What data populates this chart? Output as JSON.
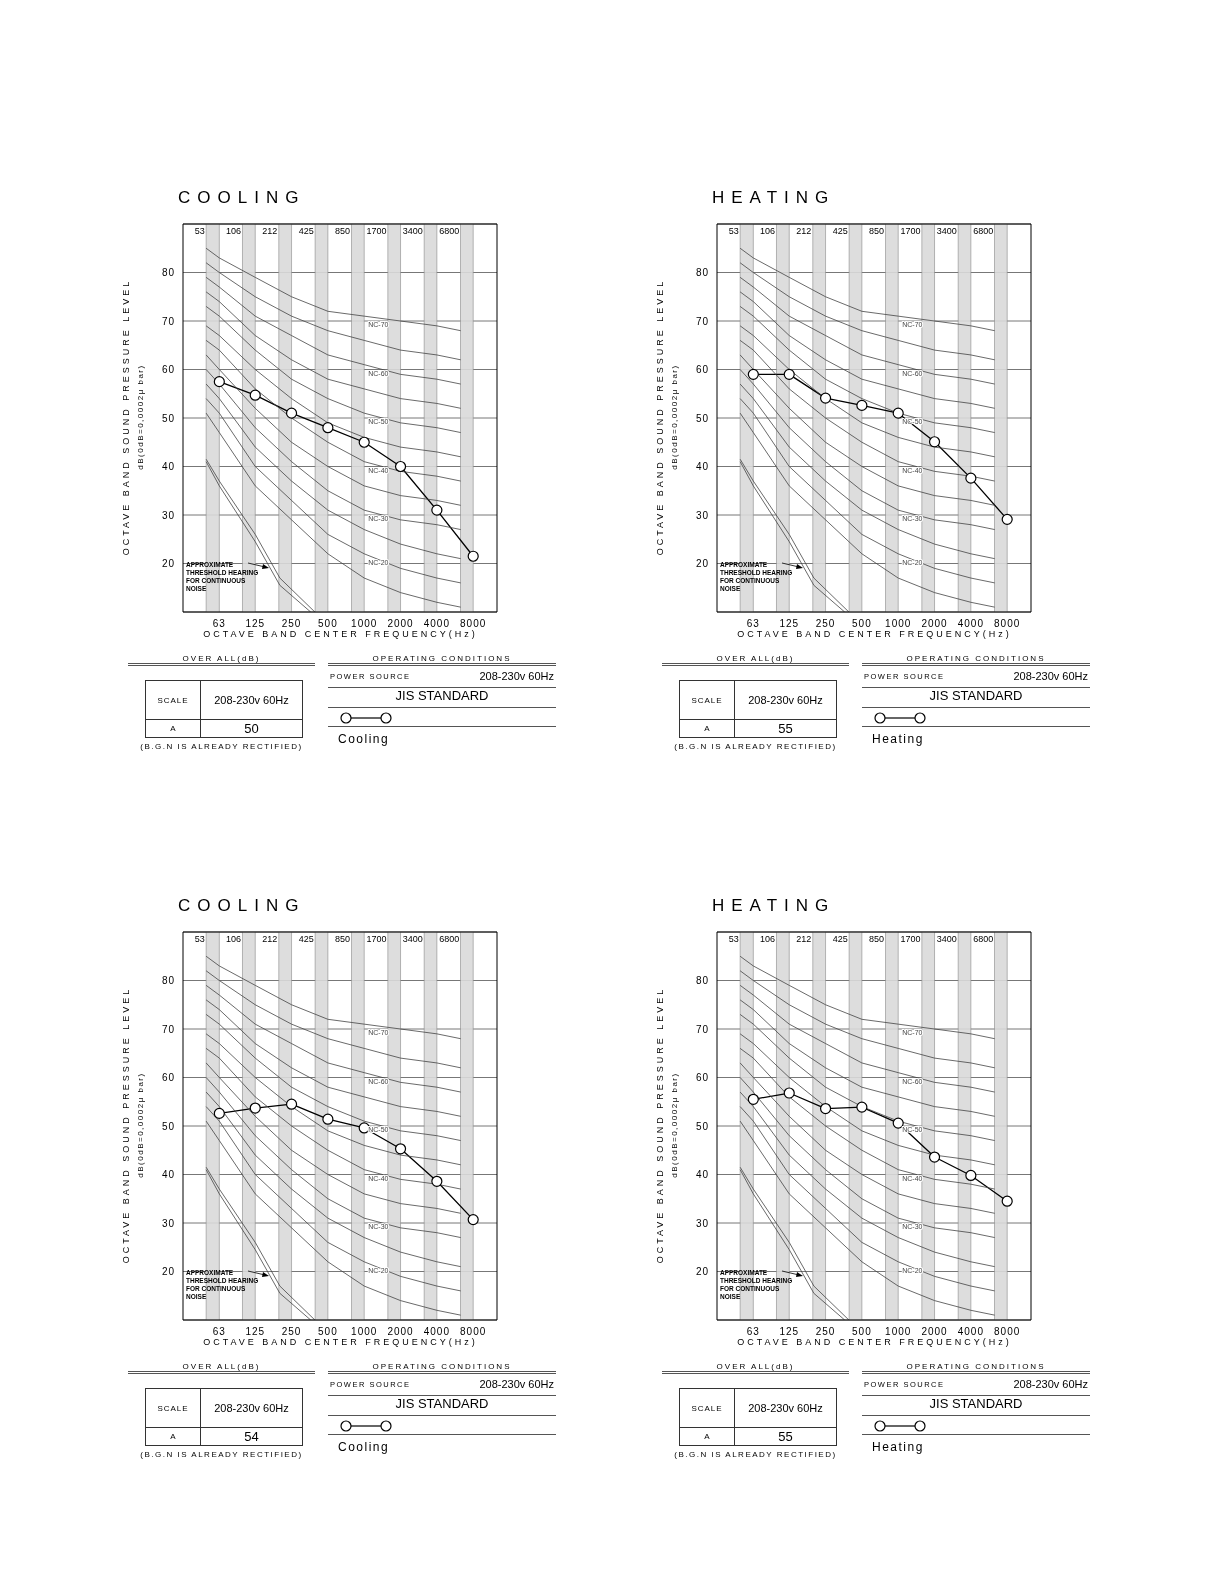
{
  "chart_data": [
    {
      "type": "line",
      "title": "COOLING",
      "xlabel": "OCTAVE BAND CENTER FREQUENCY(Hz)",
      "ylabel": "OCTAVE BAND SOUND PRESSURE LEVEL\ndB(0dB=0,0002μ bar)",
      "log": "x",
      "xlim": [
        31.5,
        12600
      ],
      "xticks": [
        63,
        125,
        250,
        500,
        1000,
        2000,
        4000,
        8000
      ],
      "ylim": [
        10,
        90
      ],
      "yticks": [
        20,
        30,
        40,
        50,
        60,
        70,
        80
      ],
      "grid": "y",
      "legend": "bottom",
      "marker": "circle",
      "x": [
        63,
        125,
        250,
        500,
        1000,
        2000,
        4000,
        8000
      ],
      "bands": [
        {
          "axis": "x",
          "from": 49,
          "to": 63,
          "color": "#d9d9d9"
        },
        {
          "axis": "x",
          "from": 98,
          "to": 125,
          "color": "#d9d9d9"
        },
        {
          "axis": "x",
          "from": 196,
          "to": 250,
          "color": "#d9d9d9"
        },
        {
          "axis": "x",
          "from": 392,
          "to": 500,
          "color": "#d9d9d9"
        },
        {
          "axis": "x",
          "from": 785,
          "to": 1000,
          "color": "#d9d9d9"
        },
        {
          "axis": "x",
          "from": 1570,
          "to": 2000,
          "color": "#d9d9d9"
        },
        {
          "axis": "x",
          "from": 3140,
          "to": 4000,
          "color": "#d9d9d9"
        },
        {
          "axis": "x",
          "from": 6280,
          "to": 8000,
          "color": "#d9d9d9"
        }
      ],
      "annotations": [
        "OVER ALL(dB)",
        "SCALE",
        "208-230v 60Hz",
        "A",
        "50",
        "(B.G.N IS ALREADY RECTIFIED)",
        "OPERATING CONDITIONS",
        "POWER SOURCE",
        "208-230v 60Hz",
        "JIS STANDARD",
        "APPROXIMATE\nTHRESHOLD HEARING\nFOR CONTINUOUS\nNOISE",
        "53",
        "106",
        "212",
        "425",
        "850",
        "1700",
        "3400",
        "6800"
      ],
      "series": [
        {
          "name": "Cooling",
          "color": "#000000",
          "values": [
            57.5,
            54.7,
            51,
            48,
            45,
            40,
            31,
            21.5
          ]
        },
        {
          "name": "NC-70",
          "color": "#444444",
          "marker": "none",
          "x": [
            49,
            63,
            125,
            250,
            500,
            1000,
            2000,
            4000,
            6300
          ],
          "values": [
            85,
            83,
            79,
            75,
            72,
            71,
            70,
            69,
            68
          ]
        },
        {
          "color": "#444444",
          "marker": "none",
          "x": [
            49,
            63,
            125,
            250,
            500,
            1000,
            2000,
            4000,
            6300
          ],
          "values": [
            82,
            80,
            75,
            71,
            68,
            66,
            64,
            63,
            62
          ]
        },
        {
          "name": "NC-60",
          "color": "#444444",
          "marker": "none",
          "x": [
            49,
            63,
            125,
            250,
            500,
            1000,
            2000,
            4000,
            6300
          ],
          "values": [
            79,
            77,
            71,
            67,
            63,
            61,
            59,
            58,
            57
          ]
        },
        {
          "color": "#444444",
          "marker": "none",
          "x": [
            49,
            63,
            125,
            250,
            500,
            1000,
            2000,
            4000,
            6300
          ],
          "values": [
            76,
            74,
            67,
            62,
            58,
            56,
            54,
            53,
            52
          ]
        },
        {
          "name": "NC-50",
          "color": "#444444",
          "marker": "none",
          "x": [
            49,
            63,
            125,
            250,
            500,
            1000,
            2000,
            4000,
            6300
          ],
          "values": [
            73,
            71,
            64,
            58,
            54,
            51,
            49,
            48,
            47
          ]
        },
        {
          "color": "#444444",
          "marker": "none",
          "x": [
            49,
            63,
            125,
            250,
            500,
            1000,
            2000,
            4000,
            6300
          ],
          "values": [
            69,
            67,
            60,
            54,
            49,
            46,
            44,
            43,
            42
          ]
        },
        {
          "name": "NC-40",
          "color": "#444444",
          "marker": "none",
          "x": [
            49,
            63,
            125,
            250,
            500,
            1000,
            2000,
            4000,
            6300
          ],
          "values": [
            66,
            64,
            56,
            50,
            45,
            41,
            39,
            38,
            37
          ]
        },
        {
          "color": "#444444",
          "marker": "none",
          "x": [
            49,
            63,
            125,
            250,
            500,
            1000,
            2000,
            4000,
            6300
          ],
          "values": [
            63,
            60,
            52,
            45,
            40,
            36,
            34,
            33,
            32
          ]
        },
        {
          "name": "NC-30",
          "color": "#444444",
          "marker": "none",
          "x": [
            49,
            63,
            125,
            250,
            500,
            1000,
            2000,
            4000,
            6300
          ],
          "values": [
            60,
            57,
            48,
            41,
            35,
            31,
            29,
            28,
            27
          ]
        },
        {
          "color": "#444444",
          "marker": "none",
          "x": [
            49,
            63,
            125,
            250,
            500,
            1000,
            2000,
            4000,
            6300
          ],
          "values": [
            57,
            54,
            44,
            37,
            31,
            27,
            24,
            22,
            21
          ]
        },
        {
          "name": "NC-20",
          "color": "#444444",
          "marker": "none",
          "x": [
            49,
            63,
            125,
            250,
            500,
            1000,
            2000,
            4000,
            6300
          ],
          "values": [
            54,
            51,
            40,
            33,
            26,
            22,
            19,
            17,
            16
          ]
        },
        {
          "color": "#444444",
          "marker": "none",
          "x": [
            49,
            63,
            125,
            250,
            500,
            1000,
            2000,
            4000,
            6300
          ],
          "values": [
            51,
            47,
            36,
            29,
            22,
            17,
            14,
            12,
            11
          ]
        },
        {
          "color": "#444444",
          "marker": "none",
          "x": [
            49,
            63,
            125,
            200,
            390
          ],
          "values": [
            41.5,
            37,
            26,
            17,
            10
          ]
        },
        {
          "color": "#444444",
          "marker": "none",
          "x": [
            49,
            63,
            125,
            200,
            360
          ],
          "values": [
            41,
            36,
            24.5,
            15.5,
            10
          ]
        }
      ]
    },
    {
      "type": "line",
      "title": "HEATING",
      "xlabel": "OCTAVE BAND CENTER FREQUENCY(Hz)",
      "ylabel": "OCTAVE BAND SOUND PRESSURE LEVEL\ndB(0dB=0,0002μ bar)",
      "log": "x",
      "xlim": [
        31.5,
        12600
      ],
      "xticks": [
        63,
        125,
        250,
        500,
        1000,
        2000,
        4000,
        8000
      ],
      "ylim": [
        10,
        90
      ],
      "yticks": [
        20,
        30,
        40,
        50,
        60,
        70,
        80
      ],
      "grid": "y",
      "legend": "bottom",
      "marker": "circle",
      "x": [
        63,
        125,
        250,
        500,
        1000,
        2000,
        4000,
        8000
      ],
      "bands": [
        {
          "axis": "x",
          "from": 49,
          "to": 63,
          "color": "#d9d9d9"
        },
        {
          "axis": "x",
          "from": 98,
          "to": 125,
          "color": "#d9d9d9"
        },
        {
          "axis": "x",
          "from": 196,
          "to": 250,
          "color": "#d9d9d9"
        },
        {
          "axis": "x",
          "from": 392,
          "to": 500,
          "color": "#d9d9d9"
        },
        {
          "axis": "x",
          "from": 785,
          "to": 1000,
          "color": "#d9d9d9"
        },
        {
          "axis": "x",
          "from": 1570,
          "to": 2000,
          "color": "#d9d9d9"
        },
        {
          "axis": "x",
          "from": 3140,
          "to": 4000,
          "color": "#d9d9d9"
        },
        {
          "axis": "x",
          "from": 6280,
          "to": 8000,
          "color": "#d9d9d9"
        }
      ],
      "annotations": [
        "OVER ALL(dB)",
        "SCALE",
        "208-230v 60Hz",
        "A",
        "55",
        "(B.G.N IS ALREADY RECTIFIED)",
        "OPERATING CONDITIONS",
        "POWER SOURCE",
        "208-230v 60Hz",
        "JIS STANDARD",
        "APPROXIMATE\nTHRESHOLD HEARING\nFOR CONTINUOUS\nNOISE",
        "53",
        "106",
        "212",
        "425",
        "850",
        "1700",
        "3400",
        "6800"
      ],
      "series": [
        {
          "name": "Heating",
          "color": "#000000",
          "values": [
            59,
            59,
            54.1,
            52.6,
            51,
            45.1,
            37.6,
            29.1
          ]
        },
        {
          "name": "NC-70",
          "color": "#444444",
          "marker": "none",
          "x": [
            49,
            63,
            125,
            250,
            500,
            1000,
            2000,
            4000,
            6300
          ],
          "values": [
            85,
            83,
            79,
            75,
            72,
            71,
            70,
            69,
            68
          ]
        },
        {
          "color": "#444444",
          "marker": "none",
          "x": [
            49,
            63,
            125,
            250,
            500,
            1000,
            2000,
            4000,
            6300
          ],
          "values": [
            82,
            80,
            75,
            71,
            68,
            66,
            64,
            63,
            62
          ]
        },
        {
          "name": "NC-60",
          "color": "#444444",
          "marker": "none",
          "x": [
            49,
            63,
            125,
            250,
            500,
            1000,
            2000,
            4000,
            6300
          ],
          "values": [
            79,
            77,
            71,
            67,
            63,
            61,
            59,
            58,
            57
          ]
        },
        {
          "color": "#444444",
          "marker": "none",
          "x": [
            49,
            63,
            125,
            250,
            500,
            1000,
            2000,
            4000,
            6300
          ],
          "values": [
            76,
            74,
            67,
            62,
            58,
            56,
            54,
            53,
            52
          ]
        },
        {
          "name": "NC-50",
          "color": "#444444",
          "marker": "none",
          "x": [
            49,
            63,
            125,
            250,
            500,
            1000,
            2000,
            4000,
            6300
          ],
          "values": [
            73,
            71,
            64,
            58,
            54,
            51,
            49,
            48,
            47
          ]
        },
        {
          "color": "#444444",
          "marker": "none",
          "x": [
            49,
            63,
            125,
            250,
            500,
            1000,
            2000,
            4000,
            6300
          ],
          "values": [
            69,
            67,
            60,
            54,
            49,
            46,
            44,
            43,
            42
          ]
        },
        {
          "name": "NC-40",
          "color": "#444444",
          "marker": "none",
          "x": [
            49,
            63,
            125,
            250,
            500,
            1000,
            2000,
            4000,
            6300
          ],
          "values": [
            66,
            64,
            56,
            50,
            45,
            41,
            39,
            38,
            37
          ]
        },
        {
          "color": "#444444",
          "marker": "none",
          "x": [
            49,
            63,
            125,
            250,
            500,
            1000,
            2000,
            4000,
            6300
          ],
          "values": [
            63,
            60,
            52,
            45,
            40,
            36,
            34,
            33,
            32
          ]
        },
        {
          "name": "NC-30",
          "color": "#444444",
          "marker": "none",
          "x": [
            49,
            63,
            125,
            250,
            500,
            1000,
            2000,
            4000,
            6300
          ],
          "values": [
            60,
            57,
            48,
            41,
            35,
            31,
            29,
            28,
            27
          ]
        },
        {
          "color": "#444444",
          "marker": "none",
          "x": [
            49,
            63,
            125,
            250,
            500,
            1000,
            2000,
            4000,
            6300
          ],
          "values": [
            57,
            54,
            44,
            37,
            31,
            27,
            24,
            22,
            21
          ]
        },
        {
          "name": "NC-20",
          "color": "#444444",
          "marker": "none",
          "x": [
            49,
            63,
            125,
            250,
            500,
            1000,
            2000,
            4000,
            6300
          ],
          "values": [
            54,
            51,
            40,
            33,
            26,
            22,
            19,
            17,
            16
          ]
        },
        {
          "color": "#444444",
          "marker": "none",
          "x": [
            49,
            63,
            125,
            250,
            500,
            1000,
            2000,
            4000,
            6300
          ],
          "values": [
            51,
            47,
            36,
            29,
            22,
            17,
            14,
            12,
            11
          ]
        },
        {
          "color": "#444444",
          "marker": "none",
          "x": [
            49,
            63,
            125,
            200,
            390
          ],
          "values": [
            41.5,
            37,
            26,
            17,
            10
          ]
        },
        {
          "color": "#444444",
          "marker": "none",
          "x": [
            49,
            63,
            125,
            200,
            360
          ],
          "values": [
            41,
            36,
            24.5,
            15.5,
            10
          ]
        }
      ]
    },
    {
      "type": "line",
      "title": "COOLING",
      "xlabel": "OCTAVE BAND CENTER FREQUENCY(Hz)",
      "ylabel": "OCTAVE BAND SOUND PRESSURE LEVEL\ndB(0dB=0,0002μ bar)",
      "log": "x",
      "xlim": [
        31.5,
        12600
      ],
      "xticks": [
        63,
        125,
        250,
        500,
        1000,
        2000,
        4000,
        8000
      ],
      "ylim": [
        10,
        90
      ],
      "yticks": [
        20,
        30,
        40,
        50,
        60,
        70,
        80
      ],
      "grid": "y",
      "legend": "bottom",
      "marker": "circle",
      "x": [
        63,
        125,
        250,
        500,
        1000,
        2000,
        4000,
        8000
      ],
      "bands": [
        {
          "axis": "x",
          "from": 49,
          "to": 63,
          "color": "#d9d9d9"
        },
        {
          "axis": "x",
          "from": 98,
          "to": 125,
          "color": "#d9d9d9"
        },
        {
          "axis": "x",
          "from": 196,
          "to": 250,
          "color": "#d9d9d9"
        },
        {
          "axis": "x",
          "from": 392,
          "to": 500,
          "color": "#d9d9d9"
        },
        {
          "axis": "x",
          "from": 785,
          "to": 1000,
          "color": "#d9d9d9"
        },
        {
          "axis": "x",
          "from": 1570,
          "to": 2000,
          "color": "#d9d9d9"
        },
        {
          "axis": "x",
          "from": 3140,
          "to": 4000,
          "color": "#d9d9d9"
        },
        {
          "axis": "x",
          "from": 6280,
          "to": 8000,
          "color": "#d9d9d9"
        }
      ],
      "annotations": [
        "OVER ALL(dB)",
        "SCALE",
        "208-230v 60Hz",
        "A",
        "54",
        "(B.G.N IS ALREADY RECTIFIED)",
        "OPERATING CONDITIONS",
        "POWER SOURCE",
        "208-230v 60Hz",
        "JIS STANDARD",
        "APPROXIMATE\nTHRESHOLD HEARING\nFOR CONTINUOUS\nNOISE",
        "53",
        "106",
        "212",
        "425",
        "850",
        "1700",
        "3400",
        "6800"
      ],
      "series": [
        {
          "name": "Cooling",
          "color": "#000000",
          "values": [
            52.6,
            53.7,
            54.5,
            51.4,
            49.6,
            45.3,
            38.6,
            30.7
          ]
        },
        {
          "name": "NC-70",
          "color": "#444444",
          "marker": "none",
          "x": [
            49,
            63,
            125,
            250,
            500,
            1000,
            2000,
            4000,
            6300
          ],
          "values": [
            85,
            83,
            79,
            75,
            72,
            71,
            70,
            69,
            68
          ]
        },
        {
          "color": "#444444",
          "marker": "none",
          "x": [
            49,
            63,
            125,
            250,
            500,
            1000,
            2000,
            4000,
            6300
          ],
          "values": [
            82,
            80,
            75,
            71,
            68,
            66,
            64,
            63,
            62
          ]
        },
        {
          "name": "NC-60",
          "color": "#444444",
          "marker": "none",
          "x": [
            49,
            63,
            125,
            250,
            500,
            1000,
            2000,
            4000,
            6300
          ],
          "values": [
            79,
            77,
            71,
            67,
            63,
            61,
            59,
            58,
            57
          ]
        },
        {
          "color": "#444444",
          "marker": "none",
          "x": [
            49,
            63,
            125,
            250,
            500,
            1000,
            2000,
            4000,
            6300
          ],
          "values": [
            76,
            74,
            67,
            62,
            58,
            56,
            54,
            53,
            52
          ]
        },
        {
          "name": "NC-50",
          "color": "#444444",
          "marker": "none",
          "x": [
            49,
            63,
            125,
            250,
            500,
            1000,
            2000,
            4000,
            6300
          ],
          "values": [
            73,
            71,
            64,
            58,
            54,
            51,
            49,
            48,
            47
          ]
        },
        {
          "color": "#444444",
          "marker": "none",
          "x": [
            49,
            63,
            125,
            250,
            500,
            1000,
            2000,
            4000,
            6300
          ],
          "values": [
            69,
            67,
            60,
            54,
            49,
            46,
            44,
            43,
            42
          ]
        },
        {
          "name": "NC-40",
          "color": "#444444",
          "marker": "none",
          "x": [
            49,
            63,
            125,
            250,
            500,
            1000,
            2000,
            4000,
            6300
          ],
          "values": [
            66,
            64,
            56,
            50,
            45,
            41,
            39,
            38,
            37
          ]
        },
        {
          "color": "#444444",
          "marker": "none",
          "x": [
            49,
            63,
            125,
            250,
            500,
            1000,
            2000,
            4000,
            6300
          ],
          "values": [
            63,
            60,
            52,
            45,
            40,
            36,
            34,
            33,
            32
          ]
        },
        {
          "name": "NC-30",
          "color": "#444444",
          "marker": "none",
          "x": [
            49,
            63,
            125,
            250,
            500,
            1000,
            2000,
            4000,
            6300
          ],
          "values": [
            60,
            57,
            48,
            41,
            35,
            31,
            29,
            28,
            27
          ]
        },
        {
          "color": "#444444",
          "marker": "none",
          "x": [
            49,
            63,
            125,
            250,
            500,
            1000,
            2000,
            4000,
            6300
          ],
          "values": [
            57,
            54,
            44,
            37,
            31,
            27,
            24,
            22,
            21
          ]
        },
        {
          "name": "NC-20",
          "color": "#444444",
          "marker": "none",
          "x": [
            49,
            63,
            125,
            250,
            500,
            1000,
            2000,
            4000,
            6300
          ],
          "values": [
            54,
            51,
            40,
            33,
            26,
            22,
            19,
            17,
            16
          ]
        },
        {
          "color": "#444444",
          "marker": "none",
          "x": [
            49,
            63,
            125,
            250,
            500,
            1000,
            2000,
            4000,
            6300
          ],
          "values": [
            51,
            47,
            36,
            29,
            22,
            17,
            14,
            12,
            11
          ]
        },
        {
          "color": "#444444",
          "marker": "none",
          "x": [
            49,
            63,
            125,
            200,
            390
          ],
          "values": [
            41.5,
            37,
            26,
            17,
            10
          ]
        },
        {
          "color": "#444444",
          "marker": "none",
          "x": [
            49,
            63,
            125,
            200,
            360
          ],
          "values": [
            41,
            36,
            24.5,
            15.5,
            10
          ]
        }
      ]
    },
    {
      "type": "line",
      "title": "HEATING",
      "xlabel": "OCTAVE BAND CENTER FREQUENCY(Hz)",
      "ylabel": "OCTAVE BAND SOUND PRESSURE LEVEL\ndB(0dB=0,0002μ bar)",
      "log": "x",
      "xlim": [
        31.5,
        12600
      ],
      "xticks": [
        63,
        125,
        250,
        500,
        1000,
        2000,
        4000,
        8000
      ],
      "ylim": [
        10,
        90
      ],
      "yticks": [
        20,
        30,
        40,
        50,
        60,
        70,
        80
      ],
      "grid": "y",
      "legend": "bottom",
      "marker": "circle",
      "x": [
        63,
        125,
        250,
        500,
        1000,
        2000,
        4000,
        8000
      ],
      "bands": [
        {
          "axis": "x",
          "from": 49,
          "to": 63,
          "color": "#d9d9d9"
        },
        {
          "axis": "x",
          "from": 98,
          "to": 125,
          "color": "#d9d9d9"
        },
        {
          "axis": "x",
          "from": 196,
          "to": 250,
          "color": "#d9d9d9"
        },
        {
          "axis": "x",
          "from": 392,
          "to": 500,
          "color": "#d9d9d9"
        },
        {
          "axis": "x",
          "from": 785,
          "to": 1000,
          "color": "#d9d9d9"
        },
        {
          "axis": "x",
          "from": 1570,
          "to": 2000,
          "color": "#d9d9d9"
        },
        {
          "axis": "x",
          "from": 3140,
          "to": 4000,
          "color": "#d9d9d9"
        },
        {
          "axis": "x",
          "from": 6280,
          "to": 8000,
          "color": "#d9d9d9"
        }
      ],
      "annotations": [
        "OVER ALL(dB)",
        "SCALE",
        "208-230v 60Hz",
        "A",
        "55",
        "(B.G.N IS ALREADY RECTIFIED)",
        "OPERATING CONDITIONS",
        "POWER SOURCE",
        "208-230v 60Hz",
        "JIS STANDARD",
        "APPROXIMATE\nTHRESHOLD HEARING\nFOR CONTINUOUS\nNOISE",
        "53",
        "106",
        "212",
        "425",
        "850",
        "1700",
        "3400",
        "6800"
      ],
      "series": [
        {
          "name": "Heating",
          "color": "#000000",
          "values": [
            55.5,
            56.8,
            53.6,
            53.9,
            50.6,
            43.6,
            39.8,
            34.5
          ]
        },
        {
          "name": "NC-70",
          "color": "#444444",
          "marker": "none",
          "x": [
            49,
            63,
            125,
            250,
            500,
            1000,
            2000,
            4000,
            6300
          ],
          "values": [
            85,
            83,
            79,
            75,
            72,
            71,
            70,
            69,
            68
          ]
        },
        {
          "color": "#444444",
          "marker": "none",
          "x": [
            49,
            63,
            125,
            250,
            500,
            1000,
            2000,
            4000,
            6300
          ],
          "values": [
            82,
            80,
            75,
            71,
            68,
            66,
            64,
            63,
            62
          ]
        },
        {
          "name": "NC-60",
          "color": "#444444",
          "marker": "none",
          "x": [
            49,
            63,
            125,
            250,
            500,
            1000,
            2000,
            4000,
            6300
          ],
          "values": [
            79,
            77,
            71,
            67,
            63,
            61,
            59,
            58,
            57
          ]
        },
        {
          "color": "#444444",
          "marker": "none",
          "x": [
            49,
            63,
            125,
            250,
            500,
            1000,
            2000,
            4000,
            6300
          ],
          "values": [
            76,
            74,
            67,
            62,
            58,
            56,
            54,
            53,
            52
          ]
        },
        {
          "name": "NC-50",
          "color": "#444444",
          "marker": "none",
          "x": [
            49,
            63,
            125,
            250,
            500,
            1000,
            2000,
            4000,
            6300
          ],
          "values": [
            73,
            71,
            64,
            58,
            54,
            51,
            49,
            48,
            47
          ]
        },
        {
          "color": "#444444",
          "marker": "none",
          "x": [
            49,
            63,
            125,
            250,
            500,
            1000,
            2000,
            4000,
            6300
          ],
          "values": [
            69,
            67,
            60,
            54,
            49,
            46,
            44,
            43,
            42
          ]
        },
        {
          "name": "NC-40",
          "color": "#444444",
          "marker": "none",
          "x": [
            49,
            63,
            125,
            250,
            500,
            1000,
            2000,
            4000,
            6300
          ],
          "values": [
            66,
            64,
            56,
            50,
            45,
            41,
            39,
            38,
            37
          ]
        },
        {
          "color": "#444444",
          "marker": "none",
          "x": [
            49,
            63,
            125,
            250,
            500,
            1000,
            2000,
            4000,
            6300
          ],
          "values": [
            63,
            60,
            52,
            45,
            40,
            36,
            34,
            33,
            32
          ]
        },
        {
          "name": "NC-30",
          "color": "#444444",
          "marker": "none",
          "x": [
            49,
            63,
            125,
            250,
            500,
            1000,
            2000,
            4000,
            6300
          ],
          "values": [
            60,
            57,
            48,
            41,
            35,
            31,
            29,
            28,
            27
          ]
        },
        {
          "color": "#444444",
          "marker": "none",
          "x": [
            49,
            63,
            125,
            250,
            500,
            1000,
            2000,
            4000,
            6300
          ],
          "values": [
            57,
            54,
            44,
            37,
            31,
            27,
            24,
            22,
            21
          ]
        },
        {
          "name": "NC-20",
          "color": "#444444",
          "marker": "none",
          "x": [
            49,
            63,
            125,
            250,
            500,
            1000,
            2000,
            4000,
            6300
          ],
          "values": [
            54,
            51,
            40,
            33,
            26,
            22,
            19,
            17,
            16
          ]
        },
        {
          "color": "#444444",
          "marker": "none",
          "x": [
            49,
            63,
            125,
            250,
            500,
            1000,
            2000,
            4000,
            6300
          ],
          "values": [
            51,
            47,
            36,
            29,
            22,
            17,
            14,
            12,
            11
          ]
        },
        {
          "color": "#444444",
          "marker": "none",
          "x": [
            49,
            63,
            125,
            200,
            390
          ],
          "values": [
            41.5,
            37,
            26,
            17,
            10
          ]
        },
        {
          "color": "#444444",
          "marker": "none",
          "x": [
            49,
            63,
            125,
            200,
            360
          ],
          "values": [
            41,
            36,
            24.5,
            15.5,
            10
          ]
        }
      ]
    }
  ]
}
